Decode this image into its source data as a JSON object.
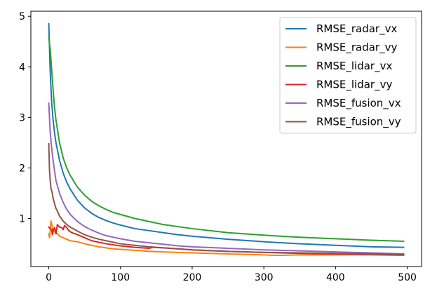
{
  "chart_data": {
    "type": "line",
    "title": "",
    "xlabel": "",
    "ylabel": "",
    "xlim": [
      -25,
      520
    ],
    "ylim": [
      0.05,
      5.1
    ],
    "xticks": [
      0,
      100,
      200,
      300,
      400,
      500
    ],
    "yticks": [
      1,
      2,
      3,
      4,
      5
    ],
    "grid": false,
    "legend_position": "top-right",
    "series": [
      {
        "name": "RMSE_radar_vx",
        "color": "#1f77b4",
        "points": [
          [
            0,
            4.85
          ],
          [
            2,
            3.9
          ],
          [
            4,
            3.3
          ],
          [
            6,
            2.95
          ],
          [
            8,
            2.7
          ],
          [
            10,
            2.5
          ],
          [
            15,
            2.15
          ],
          [
            20,
            1.9
          ],
          [
            25,
            1.72
          ],
          [
            30,
            1.58
          ],
          [
            40,
            1.36
          ],
          [
            50,
            1.21
          ],
          [
            60,
            1.1
          ],
          [
            70,
            1.02
          ],
          [
            80,
            0.96
          ],
          [
            90,
            0.91
          ],
          [
            100,
            0.87
          ],
          [
            120,
            0.8
          ],
          [
            140,
            0.76
          ],
          [
            160,
            0.72
          ],
          [
            180,
            0.68
          ],
          [
            200,
            0.65
          ],
          [
            250,
            0.59
          ],
          [
            300,
            0.54
          ],
          [
            350,
            0.5
          ],
          [
            400,
            0.47
          ],
          [
            450,
            0.44
          ],
          [
            495,
            0.43
          ]
        ]
      },
      {
        "name": "RMSE_radar_vy",
        "color": "#ff7f0e",
        "points": [
          [
            0,
            0.7
          ],
          [
            1,
            0.62
          ],
          [
            2,
            0.75
          ],
          [
            3,
            0.95
          ],
          [
            4,
            0.9
          ],
          [
            5,
            0.82
          ],
          [
            6,
            0.72
          ],
          [
            7,
            0.8
          ],
          [
            8,
            0.75
          ],
          [
            10,
            0.7
          ],
          [
            12,
            0.7
          ],
          [
            15,
            0.65
          ],
          [
            20,
            0.62
          ],
          [
            25,
            0.59
          ],
          [
            30,
            0.56
          ],
          [
            35,
            0.55
          ],
          [
            40,
            0.54
          ],
          [
            50,
            0.5
          ],
          [
            60,
            0.47
          ],
          [
            70,
            0.44
          ],
          [
            80,
            0.42
          ],
          [
            90,
            0.4
          ],
          [
            100,
            0.39
          ],
          [
            120,
            0.37
          ],
          [
            140,
            0.35
          ],
          [
            160,
            0.34
          ],
          [
            180,
            0.33
          ],
          [
            200,
            0.32
          ],
          [
            250,
            0.3
          ],
          [
            300,
            0.28
          ],
          [
            320,
            0.27
          ],
          [
            350,
            0.28
          ],
          [
            400,
            0.28
          ],
          [
            450,
            0.28
          ],
          [
            495,
            0.27
          ]
        ]
      },
      {
        "name": "RMSE_lidar_vx",
        "color": "#2ca02c",
        "points": [
          [
            0,
            4.58
          ],
          [
            2,
            4.35
          ],
          [
            4,
            3.95
          ],
          [
            6,
            3.55
          ],
          [
            8,
            3.2
          ],
          [
            10,
            2.95
          ],
          [
            15,
            2.5
          ],
          [
            20,
            2.2
          ],
          [
            25,
            2.0
          ],
          [
            30,
            1.85
          ],
          [
            40,
            1.62
          ],
          [
            50,
            1.46
          ],
          [
            60,
            1.34
          ],
          [
            70,
            1.25
          ],
          [
            80,
            1.18
          ],
          [
            90,
            1.12
          ],
          [
            100,
            1.08
          ],
          [
            120,
            1.0
          ],
          [
            140,
            0.94
          ],
          [
            160,
            0.88
          ],
          [
            180,
            0.84
          ],
          [
            200,
            0.8
          ],
          [
            250,
            0.72
          ],
          [
            300,
            0.67
          ],
          [
            350,
            0.63
          ],
          [
            400,
            0.6
          ],
          [
            450,
            0.57
          ],
          [
            495,
            0.55
          ]
        ]
      },
      {
        "name": "RMSE_lidar_vy",
        "color": "#d62728",
        "points": [
          [
            0,
            0.83
          ],
          [
            2,
            0.8
          ],
          [
            4,
            0.78
          ],
          [
            5,
            0.68
          ],
          [
            6,
            0.76
          ],
          [
            8,
            0.82
          ],
          [
            10,
            0.7
          ],
          [
            12,
            0.88
          ],
          [
            15,
            0.83
          ],
          [
            18,
            0.82
          ],
          [
            20,
            0.78
          ],
          [
            22,
            0.86
          ],
          [
            25,
            0.82
          ],
          [
            28,
            0.76
          ],
          [
            32,
            0.72
          ],
          [
            40,
            0.68
          ],
          [
            50,
            0.62
          ],
          [
            60,
            0.56
          ],
          [
            80,
            0.5
          ],
          [
            100,
            0.46
          ],
          [
            120,
            0.43
          ],
          [
            140,
            0.41
          ],
          [
            145,
            0.43
          ],
          [
            160,
            0.42
          ],
          [
            180,
            0.4
          ],
          [
            200,
            0.38
          ],
          [
            250,
            0.35
          ],
          [
            300,
            0.33
          ],
          [
            350,
            0.31
          ],
          [
            400,
            0.3
          ],
          [
            450,
            0.29
          ],
          [
            495,
            0.28
          ]
        ]
      },
      {
        "name": "RMSE_fusion_vx",
        "color": "#9467bd",
        "points": [
          [
            0,
            3.28
          ],
          [
            2,
            2.7
          ],
          [
            4,
            2.4
          ],
          [
            6,
            2.15
          ],
          [
            8,
            1.95
          ],
          [
            10,
            1.75
          ],
          [
            15,
            1.5
          ],
          [
            20,
            1.32
          ],
          [
            25,
            1.18
          ],
          [
            30,
            1.08
          ],
          [
            40,
            0.94
          ],
          [
            50,
            0.84
          ],
          [
            60,
            0.77
          ],
          [
            70,
            0.71
          ],
          [
            80,
            0.66
          ],
          [
            90,
            0.63
          ],
          [
            100,
            0.6
          ],
          [
            120,
            0.55
          ],
          [
            140,
            0.52
          ],
          [
            160,
            0.49
          ],
          [
            180,
            0.46
          ],
          [
            200,
            0.44
          ],
          [
            250,
            0.41
          ],
          [
            300,
            0.38
          ],
          [
            350,
            0.36
          ],
          [
            400,
            0.34
          ],
          [
            450,
            0.32
          ],
          [
            495,
            0.3
          ]
        ]
      },
      {
        "name": "RMSE_fusion_vy",
        "color": "#8c564b",
        "points": [
          [
            0,
            2.48
          ],
          [
            1,
            1.95
          ],
          [
            2,
            1.75
          ],
          [
            3,
            1.6
          ],
          [
            4,
            1.55
          ],
          [
            5,
            1.5
          ],
          [
            6,
            1.4
          ],
          [
            8,
            1.3
          ],
          [
            10,
            1.2
          ],
          [
            12,
            1.15
          ],
          [
            15,
            1.05
          ],
          [
            20,
            0.95
          ],
          [
            25,
            0.88
          ],
          [
            30,
            0.83
          ],
          [
            40,
            0.75
          ],
          [
            50,
            0.68
          ],
          [
            60,
            0.63
          ],
          [
            70,
            0.59
          ],
          [
            80,
            0.56
          ],
          [
            90,
            0.53
          ],
          [
            100,
            0.5
          ],
          [
            120,
            0.47
          ],
          [
            140,
            0.44
          ],
          [
            160,
            0.42
          ],
          [
            180,
            0.4
          ],
          [
            200,
            0.38
          ],
          [
            250,
            0.35
          ],
          [
            300,
            0.33
          ],
          [
            350,
            0.32
          ],
          [
            400,
            0.31
          ],
          [
            450,
            0.3
          ],
          [
            495,
            0.29
          ]
        ]
      }
    ]
  }
}
